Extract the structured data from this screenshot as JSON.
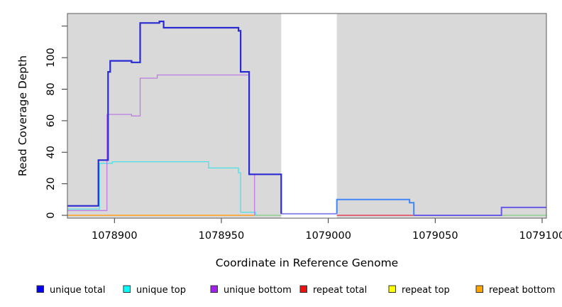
{
  "chart_data": {
    "type": "line",
    "subtype": "step-coverage-plot",
    "title": "",
    "xlabel": "Coordinate in Reference Genome",
    "ylabel": "Read Coverage Depth",
    "xlim": [
      1078878,
      1079102
    ],
    "ylim": [
      0,
      128
    ],
    "grid": false,
    "panel_background": "#d9d9d9",
    "highlight_gap": {
      "x0": 1078978,
      "x1": 1079004,
      "color": "#ffffff"
    },
    "x_ticks": [
      "1078900",
      "1078950",
      "1079000",
      "1079050",
      "1079100"
    ],
    "x_tick_values": [
      1078900,
      1078950,
      1079000,
      1079050,
      1079100
    ],
    "y_ticks": [
      "0",
      "20",
      "40",
      "60",
      "80",
      "100"
    ],
    "y_tick_values": [
      0,
      20,
      40,
      60,
      80,
      100
    ],
    "y_unlabeled_tick_values": [
      120
    ],
    "legend": {
      "position": "bottom",
      "entries": [
        {
          "label": "unique total",
          "color": "#0000ee"
        },
        {
          "label": "unique top",
          "color": "#00ffff"
        },
        {
          "label": "unique bottom",
          "color": "#a020f0"
        },
        {
          "label": "repeat total",
          "color": "#ee1111"
        },
        {
          "label": "repeat top",
          "color": "#ffff00"
        },
        {
          "label": "repeat bottom",
          "color": "#ffa500"
        }
      ]
    },
    "series": [
      {
        "name": "repeat bottom zero baseline",
        "color": "#ff9f1a",
        "width": 1.4,
        "steps": [
          [
            1078878,
            0
          ],
          [
            1078965.5,
            0
          ]
        ]
      },
      {
        "name": "repeat total zero baseline",
        "color": "#e04055",
        "width": 1.4,
        "steps": [
          [
            1079004,
            0
          ],
          [
            1079040,
            0
          ]
        ]
      },
      {
        "name": "repeat-top unique-top overlap zero left",
        "color": "#8fd08f",
        "width": 1.4,
        "steps": [
          [
            1078965.5,
            0
          ],
          [
            1078978,
            0
          ]
        ]
      },
      {
        "name": "repeat-top unique-top overlap zero right",
        "color": "#8fd08f",
        "width": 1.4,
        "steps": [
          [
            1079081,
            0
          ],
          [
            1079102,
            0
          ]
        ]
      },
      {
        "name": "unique total through gap",
        "color": "#8585f0",
        "width": 1.8,
        "steps": [
          [
            1078978,
            1
          ],
          [
            1079004,
            1
          ]
        ]
      },
      {
        "name": "unique top",
        "color": "#4ddfe6",
        "width": 1.3,
        "steps": [
          [
            1078878,
            4
          ],
          [
            1078893,
            33
          ],
          [
            1078899,
            34
          ],
          [
            1078944,
            30
          ],
          [
            1078958,
            27
          ],
          [
            1078959,
            2
          ],
          [
            1078966,
            0
          ]
        ]
      },
      {
        "name": "unique bottom",
        "color": "#bd7ce4",
        "width": 1.3,
        "steps": [
          [
            1078878,
            3
          ],
          [
            1078896.5,
            64
          ],
          [
            1078908,
            63
          ],
          [
            1078912,
            87
          ],
          [
            1078920,
            89
          ],
          [
            1078963,
            26
          ],
          [
            1078965.5,
            0
          ]
        ]
      },
      {
        "name": "unique total",
        "color": "#2a2ad2",
        "width": 2.2,
        "steps": [
          [
            1078878,
            6
          ],
          [
            1078892.5,
            35
          ],
          [
            1078897,
            91
          ],
          [
            1078898,
            98
          ],
          [
            1078908,
            97
          ],
          [
            1078912,
            122
          ],
          [
            1078921,
            123
          ],
          [
            1078923,
            119
          ],
          [
            1078958,
            117
          ],
          [
            1078959,
            91
          ],
          [
            1078963,
            26
          ],
          [
            1078978,
            1
          ]
        ]
      },
      {
        "name": "unique total with unique top overlap right of gap",
        "color": "#4285f4",
        "width": 2,
        "steps": [
          [
            1079004,
            1
          ],
          [
            1079004,
            10
          ],
          [
            1079038,
            8
          ],
          [
            1079040,
            0
          ]
        ]
      },
      {
        "name": "unique total with unique bottom overlap far right",
        "color": "#6a5ae8",
        "width": 2,
        "steps": [
          [
            1079040,
            0
          ],
          [
            1079081,
            5
          ],
          [
            1079102,
            5
          ]
        ]
      }
    ]
  }
}
